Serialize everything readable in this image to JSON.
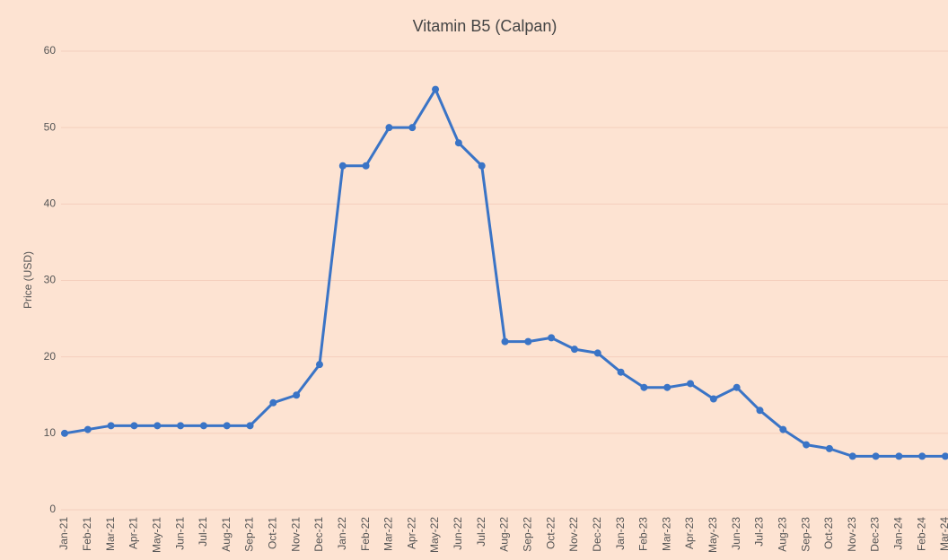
{
  "chart_data": {
    "type": "line",
    "title": "Vitamin B5 (Calpan)",
    "y_label": "Price (USD)",
    "categories": [
      "Jan-21",
      "Feb-21",
      "Mar-21",
      "Apr-21",
      "May-21",
      "Jun-21",
      "Jul-21",
      "Aug-21",
      "Sep-21",
      "Oct-21",
      "Nov-21",
      "Dec-21",
      "Jan-22",
      "Feb-22",
      "Mar-22",
      "Apr-22",
      "May-22",
      "Jun-22",
      "Jul-22",
      "Aug-22",
      "Sep-22",
      "Oct-22",
      "Nov-22",
      "Dec-22",
      "Jan-23",
      "Feb-23",
      "Mar-23",
      "Apr-23",
      "May-23",
      "Jun-23",
      "Jul-23",
      "Aug-23",
      "Sep-23",
      "Oct-23",
      "Nov-23",
      "Dec-23",
      "Jan-24",
      "Feb-24",
      "Mar-24"
    ],
    "values": [
      10,
      10.5,
      11,
      11,
      11,
      11,
      11,
      11,
      11,
      14,
      15,
      19,
      45,
      45,
      50,
      50,
      55,
      48,
      45,
      22,
      22,
      22.5,
      21,
      20.5,
      18,
      16,
      16,
      16.5,
      14.5,
      16,
      13,
      10.5,
      8.5,
      8,
      7,
      7,
      7,
      7,
      7
    ],
    "color": "#3a74c6",
    "ylim": [
      0,
      60
    ],
    "yticks": [
      0,
      10,
      20,
      30,
      40,
      50,
      60
    ],
    "grid": true
  }
}
